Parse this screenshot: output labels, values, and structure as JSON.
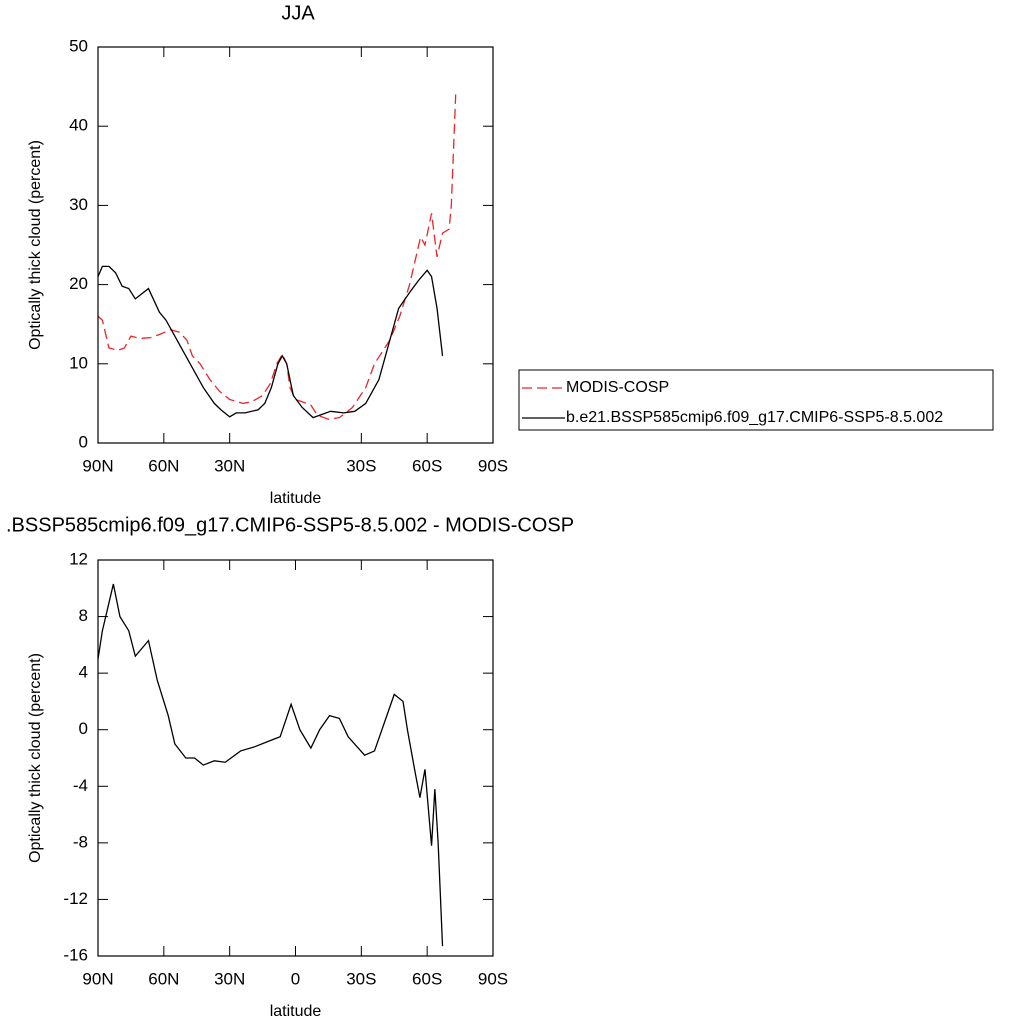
{
  "chart_data": [
    {
      "type": "line",
      "title": "JJA",
      "xlabel": "latitude",
      "ylabel": "Optically thick cloud (percent)",
      "xlim": [
        90,
        -90
      ],
      "ylim": [
        0,
        50
      ],
      "xticks": [
        {
          "value": 90,
          "label": "90N"
        },
        {
          "value": 60,
          "label": "60N"
        },
        {
          "value": 30,
          "label": "30N"
        },
        {
          "value": -30,
          "label": "30S"
        },
        {
          "value": -60,
          "label": "60S"
        },
        {
          "value": -90,
          "label": "90S"
        }
      ],
      "yticks": [
        0,
        10,
        20,
        30,
        40,
        50
      ],
      "legend": "right",
      "series": [
        {
          "name": "MODIS-COSP",
          "color": "#e8262a",
          "dash": true,
          "x": [
            90,
            88,
            85,
            81,
            78,
            75,
            71,
            66,
            62,
            57,
            53,
            49.5,
            47,
            43.5,
            39,
            34.5,
            30,
            24,
            20,
            15,
            11.5,
            8.5,
            6,
            4,
            2.5,
            0,
            -7,
            -10,
            -15,
            -20,
            -26,
            -32,
            -36,
            -43,
            -47.5,
            -52,
            -57,
            -59,
            -62,
            -64.5,
            -67,
            -70,
            -71,
            -73
          ],
          "values": [
            16,
            15.5,
            12,
            11.7,
            12,
            13.5,
            13.2,
            13.3,
            13.7,
            14.3,
            14,
            13,
            11,
            10,
            8,
            6.5,
            5.5,
            5,
            5.2,
            6,
            7.5,
            10,
            11.2,
            10,
            7,
            5.5,
            4.8,
            3.5,
            3,
            3.2,
            4.5,
            7,
            10,
            13,
            16,
            20,
            26,
            25,
            29,
            23.5,
            26.5,
            27,
            30,
            44
          ]
        },
        {
          "name": "b.e21.BSSP585cmip6.f09_g17.CMIP6-SSP5-8.5.002",
          "color": "#000000",
          "dash": false,
          "x": [
            90,
            88,
            85,
            82,
            79,
            76,
            73,
            67,
            62,
            59,
            54,
            48,
            42,
            37,
            34,
            30,
            27,
            23,
            17,
            14,
            11,
            8,
            6,
            4,
            1,
            -3,
            -8,
            -11,
            -16,
            -22,
            -27,
            -32,
            -38,
            -43,
            -47,
            -52,
            -56,
            -60,
            -62,
            -64.5,
            -67
          ],
          "values": [
            21,
            22.3,
            22.3,
            21.5,
            19.8,
            19.5,
            18.2,
            19.5,
            16.5,
            15.5,
            13,
            10,
            7,
            5,
            4.2,
            3.3,
            3.8,
            3.8,
            4.2,
            5,
            7,
            10,
            11,
            10,
            6,
            4.5,
            3.2,
            3.5,
            4,
            3.8,
            4,
            5,
            8,
            13,
            17,
            19,
            20.5,
            21.8,
            21,
            17,
            11
          ]
        }
      ]
    },
    {
      "type": "line",
      "title": ".BSSP585cmip6.f09_g17.CMIP6-SSP5-8.5.002 - MODIS-COSP",
      "xlabel": "latitude",
      "ylabel": "Optically thick cloud (percent)",
      "xlim": [
        90,
        -90
      ],
      "ylim": [
        -16,
        12
      ],
      "xticks": [
        {
          "value": 90,
          "label": "90N"
        },
        {
          "value": 60,
          "label": "60N"
        },
        {
          "value": 30,
          "label": "30N"
        },
        0,
        {
          "value": -30,
          "label": "30S"
        },
        {
          "value": -60,
          "label": "60S"
        },
        {
          "value": -90,
          "label": "90S"
        }
      ],
      "yticks": [
        -16,
        -12,
        -8,
        -4,
        0,
        4,
        8,
        12
      ],
      "series": [
        {
          "color": "#000000",
          "dash": false,
          "x": [
            90,
            88,
            83,
            80,
            76,
            73,
            67,
            63,
            58,
            55,
            50,
            46,
            42,
            37,
            32,
            25,
            18.5,
            12,
            7,
            2,
            -2,
            -7,
            -11,
            -15.5,
            -20,
            -24,
            -31.5,
            -36,
            -40.5,
            -45,
            -49,
            -51,
            -54.5,
            -56.7,
            -59,
            -62,
            -63.5,
            -65,
            -67
          ],
          "values": [
            5,
            7,
            10.3,
            8,
            7,
            5.2,
            6.3,
            3.5,
            1,
            -1,
            -2,
            -2,
            -2.5,
            -2.2,
            -2.3,
            -1.5,
            -1.2,
            -0.8,
            -0.5,
            1.8,
            0,
            -1.3,
            0,
            1,
            0.8,
            -0.5,
            -1.8,
            -1.5,
            0.5,
            2.5,
            2,
            0,
            -3,
            -4.8,
            -2.8,
            -8.2,
            -4.2,
            -8,
            -15.3
          ]
        }
      ]
    }
  ]
}
